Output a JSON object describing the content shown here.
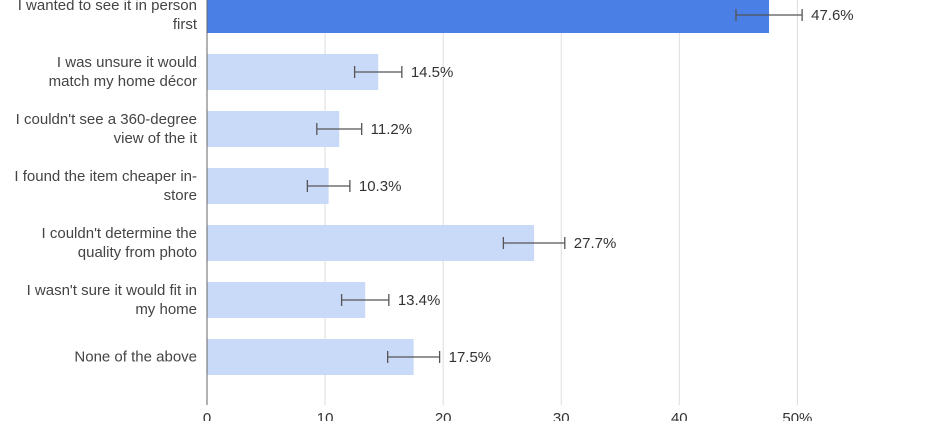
{
  "chart_data": {
    "type": "hbar",
    "categories": [
      "I wanted to see it in person first",
      "I was unsure it would match my home décor",
      "I couldn't see a 360-degree view of the it",
      "I found the item cheaper in-store",
      "I couldn't determine the quality from photo",
      "I wasn't sure it would fit in my home",
      "None of the above"
    ],
    "values": [
      47.6,
      14.5,
      11.2,
      10.3,
      27.7,
      13.4,
      17.5
    ],
    "value_labels": [
      "47.6%",
      "14.5%",
      "11.2%",
      "10.3%",
      "27.7%",
      "13.4%",
      "17.5%"
    ],
    "errors": [
      2.8,
      2.0,
      1.9,
      1.8,
      2.6,
      2.0,
      2.2
    ],
    "colors": [
      "#4a7fe6",
      "#c9daf8",
      "#c9daf8",
      "#c9daf8",
      "#c9daf8",
      "#c9daf8",
      "#c9daf8"
    ],
    "xlim": [
      0,
      62.5
    ],
    "xticks": [
      0,
      10,
      20,
      30,
      40,
      {
        "value": 50,
        "label": "50%"
      }
    ],
    "grid": true
  }
}
